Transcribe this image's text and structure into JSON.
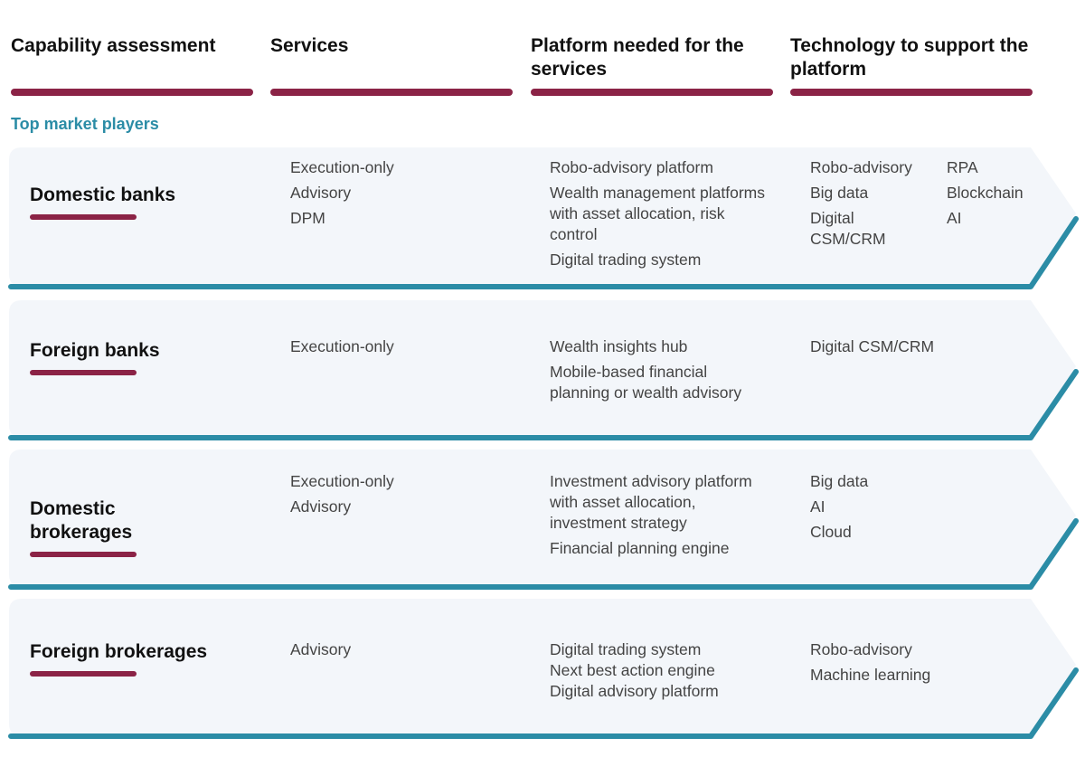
{
  "headers": [
    "Capability assessment",
    "Services",
    "Platform needed for the services",
    "Technology to support the platform"
  ],
  "section_label": "Top market players",
  "colors": {
    "accent_maroon": "#8b2346",
    "accent_teal": "#2b8ca6",
    "row_fill": "#f3f6fa"
  },
  "rows": [
    {
      "title": "Domestic banks",
      "services": [
        "Execution-only",
        "Advisory",
        "DPM"
      ],
      "platforms": [
        "Robo-advisory platform",
        "Wealth management platforms with asset allocation, risk control",
        "Digital trading system"
      ],
      "technology": [
        "Robo-advisory",
        "Big data",
        "Digital CSM/CRM"
      ],
      "technology_extra": [
        "RPA",
        "Blockchain",
        "AI"
      ]
    },
    {
      "title": "Foreign banks",
      "services": [
        "Execution-only"
      ],
      "platforms": [
        "Wealth insights hub",
        "Mobile-based financial planning or wealth advisory"
      ],
      "technology": [
        "Digital CSM/CRM"
      ],
      "technology_extra": []
    },
    {
      "title": "Domestic brokerages",
      "services": [
        "Execution-only",
        "Advisory"
      ],
      "platforms": [
        "Investment advisory platform with asset allocation, investment strategy",
        "Financial planning engine"
      ],
      "technology": [
        "Big data",
        "AI",
        "Cloud"
      ],
      "technology_extra": []
    },
    {
      "title": "Foreign brokerages",
      "services": [
        "Advisory"
      ],
      "platforms": [
        "Digital trading system",
        "Next best action engine",
        "Digital advisory platform"
      ],
      "technology": [
        "Robo-advisory",
        "Machine learning"
      ],
      "technology_extra": []
    }
  ]
}
